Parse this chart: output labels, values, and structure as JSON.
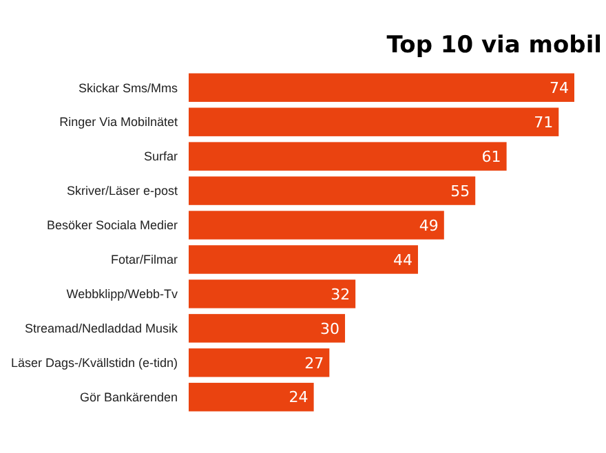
{
  "chart_data": {
    "type": "bar",
    "orientation": "horizontal",
    "title": "Top 10 via mobil",
    "categories": [
      "Skickar Sms/Mms",
      "Ringer Via Mobilnätet",
      "Surfar",
      "Skriver/Läser e-post",
      "Besöker Sociala Medier",
      "Fotar/Filmar",
      "Webbklipp/Webb-Tv",
      "Streamad/Nedladdad Musik",
      "Läser Dags-/Kvällstidn (e-tidn)",
      "Gör Bankärenden"
    ],
    "values": [
      74,
      71,
      61,
      55,
      49,
      44,
      32,
      30,
      27,
      24
    ],
    "color": "#ea4310",
    "data_labels": true
  }
}
